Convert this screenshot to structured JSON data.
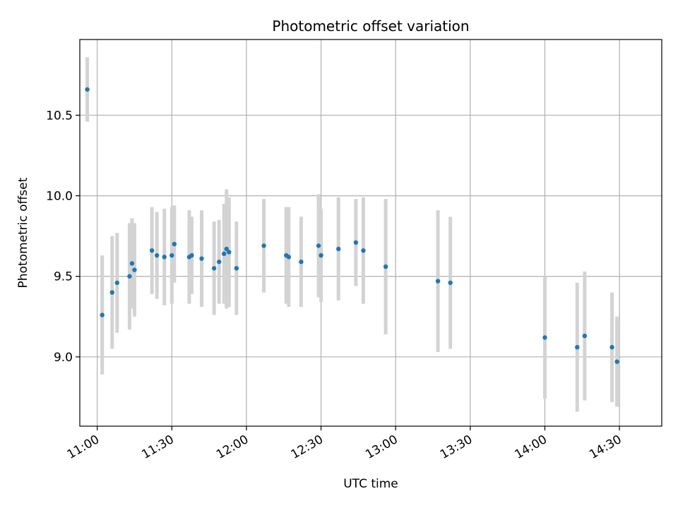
{
  "chart_data": {
    "type": "scatter",
    "title": "Photometric offset variation",
    "xlabel": "UTC time",
    "ylabel": "Photometric offset",
    "xlim": [
      "10:53",
      "14:47"
    ],
    "ylim": [
      8.57,
      10.97
    ],
    "x_ticks": [
      "11:00",
      "11:30",
      "12:00",
      "12:30",
      "13:00",
      "13:30",
      "14:00",
      "14:30"
    ],
    "y_ticks": [
      9.0,
      9.5,
      10.0,
      10.5
    ],
    "y_tick_labels": [
      "9.0",
      "9.5",
      "10.0",
      "10.5"
    ],
    "grid": true,
    "marker_color": "#1f77b4",
    "errorbar_color": "#d3d3d3",
    "points": [
      {
        "x": "10:56",
        "y": 10.66,
        "err": 0.2
      },
      {
        "x": "11:02",
        "y": 9.26,
        "err": 0.37
      },
      {
        "x": "11:06",
        "y": 9.4,
        "err": 0.35
      },
      {
        "x": "11:08",
        "y": 9.46,
        "err": 0.31
      },
      {
        "x": "11:13",
        "y": 9.5,
        "err": 0.33
      },
      {
        "x": "11:14",
        "y": 9.58,
        "err": 0.28
      },
      {
        "x": "11:15",
        "y": 9.54,
        "err": 0.29
      },
      {
        "x": "11:22",
        "y": 9.66,
        "err": 0.27
      },
      {
        "x": "11:24",
        "y": 9.63,
        "err": 0.27
      },
      {
        "x": "11:27",
        "y": 9.62,
        "err": 0.3
      },
      {
        "x": "11:30",
        "y": 9.63,
        "err": 0.3
      },
      {
        "x": "11:31",
        "y": 9.7,
        "err": 0.24
      },
      {
        "x": "11:37",
        "y": 9.62,
        "err": 0.29
      },
      {
        "x": "11:38",
        "y": 9.63,
        "err": 0.24
      },
      {
        "x": "11:42",
        "y": 9.61,
        "err": 0.3
      },
      {
        "x": "11:47",
        "y": 9.55,
        "err": 0.29
      },
      {
        "x": "11:49",
        "y": 9.59,
        "err": 0.26
      },
      {
        "x": "11:51",
        "y": 9.64,
        "err": 0.31
      },
      {
        "x": "11:52",
        "y": 9.67,
        "err": 0.37
      },
      {
        "x": "11:53",
        "y": 9.65,
        "err": 0.34
      },
      {
        "x": "11:56",
        "y": 9.55,
        "err": 0.29
      },
      {
        "x": "12:07",
        "y": 9.69,
        "err": 0.29
      },
      {
        "x": "12:16",
        "y": 9.63,
        "err": 0.3
      },
      {
        "x": "12:17",
        "y": 9.62,
        "err": 0.31
      },
      {
        "x": "12:22",
        "y": 9.59,
        "err": 0.28
      },
      {
        "x": "12:29",
        "y": 9.69,
        "err": 0.32
      },
      {
        "x": "12:30",
        "y": 9.63,
        "err": 0.29
      },
      {
        "x": "12:37",
        "y": 9.67,
        "err": 0.32
      },
      {
        "x": "12:44",
        "y": 9.71,
        "err": 0.27
      },
      {
        "x": "12:47",
        "y": 9.66,
        "err": 0.33
      },
      {
        "x": "12:56",
        "y": 9.56,
        "err": 0.42
      },
      {
        "x": "13:17",
        "y": 9.47,
        "err": 0.44
      },
      {
        "x": "13:22",
        "y": 9.46,
        "err": 0.41
      },
      {
        "x": "14:00",
        "y": 9.12,
        "err": 0.38
      },
      {
        "x": "14:13",
        "y": 9.06,
        "err": 0.4
      },
      {
        "x": "14:16",
        "y": 9.13,
        "err": 0.4
      },
      {
        "x": "14:27",
        "y": 9.06,
        "err": 0.34
      },
      {
        "x": "14:29",
        "y": 8.97,
        "err": 0.28
      }
    ]
  }
}
